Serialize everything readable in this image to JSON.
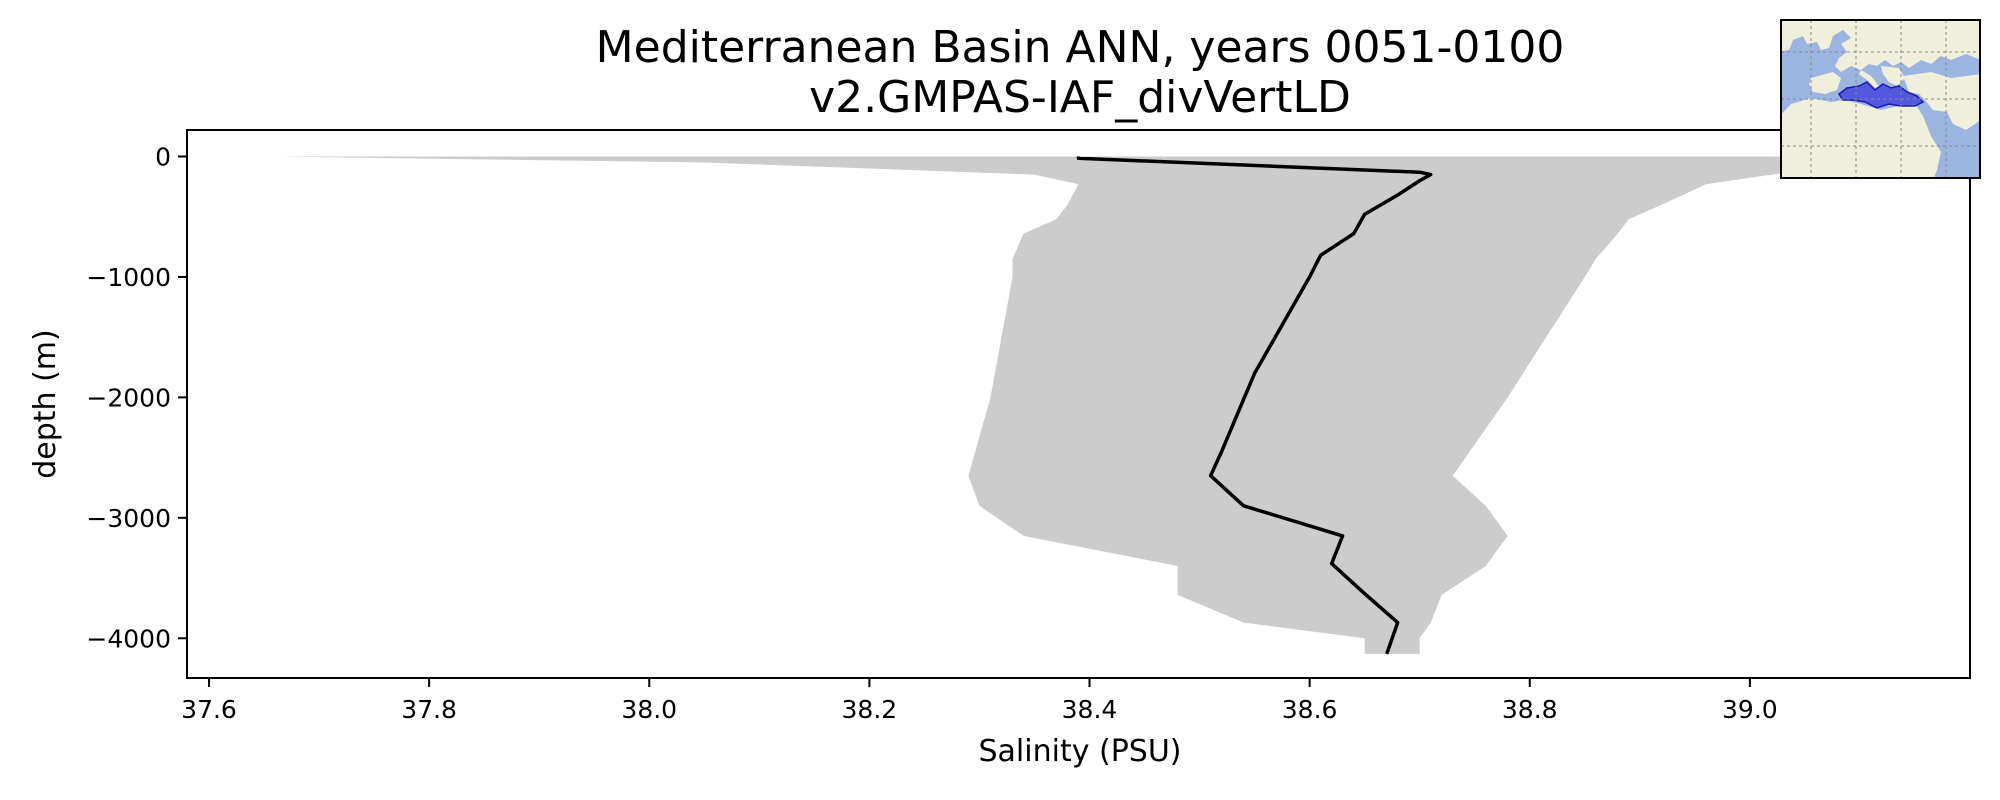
{
  "chart_data": {
    "type": "line",
    "title": "Mediterranean Basin ANN, years 0051-0100",
    "subtitle": "v2.GMPAS-IAF_divVertLD",
    "xlabel": "Salinity (PSU)",
    "ylabel": "depth (m)",
    "xlim": [
      37.58,
      39.2
    ],
    "ylim": [
      -4330,
      220
    ],
    "grid": false,
    "x_ticks": [
      {
        "value": 37.6,
        "label": "37.6"
      },
      {
        "value": 37.8,
        "label": "37.8"
      },
      {
        "value": 38.0,
        "label": "38.0"
      },
      {
        "value": 38.2,
        "label": "38.2"
      },
      {
        "value": 38.4,
        "label": "38.4"
      },
      {
        "value": 38.6,
        "label": "38.6"
      },
      {
        "value": 38.8,
        "label": "38.8"
      },
      {
        "value": 39.0,
        "label": "39.0"
      }
    ],
    "y_ticks": [
      {
        "value": 0,
        "label": "0"
      },
      {
        "value": -1000,
        "label": "−1000"
      },
      {
        "value": -2000,
        "label": "−2000"
      },
      {
        "value": -3000,
        "label": "−3000"
      },
      {
        "value": -4000,
        "label": "−4000"
      }
    ],
    "mean_profile": {
      "color": "#000000",
      "x": [
        38.39,
        38.39,
        38.7,
        38.71,
        38.7,
        38.68,
        38.65,
        38.64,
        38.61,
        38.6,
        38.55,
        38.52,
        38.51,
        38.54,
        38.63,
        38.62,
        38.65,
        38.68,
        38.67
      ],
      "y": [
        0,
        -15,
        -130,
        -150,
        -200,
        -320,
        -480,
        -640,
        -820,
        -1000,
        -1800,
        -2450,
        -2650,
        -2900,
        -3150,
        -3380,
        -3630,
        -3870,
        -4130
      ]
    },
    "spread_band": {
      "color": "#cccccc",
      "x_min": [
        37.66,
        38.05,
        38.35,
        38.39,
        38.38,
        38.37,
        38.34,
        38.33,
        38.33,
        38.31,
        38.29,
        38.3,
        38.34,
        38.48,
        38.48,
        38.54,
        38.65,
        38.65
      ],
      "x_max": [
        39.15,
        39.1,
        39.02,
        38.96,
        38.92,
        38.89,
        38.88,
        38.86,
        38.85,
        38.78,
        38.73,
        38.76,
        38.78,
        38.76,
        38.72,
        38.71,
        38.7,
        38.7
      ],
      "y": [
        0,
        -50,
        -150,
        -230,
        -400,
        -520,
        -640,
        -850,
        -1000,
        -2000,
        -2650,
        -2900,
        -3150,
        -3400,
        -3640,
        -3870,
        -4000,
        -4130
      ]
    },
    "inset_map": {
      "description_icon": "mediterranean-region-map",
      "ocean_color": "#9bb5e0",
      "land_color": "#efefdc",
      "region_color": "#3b3bdc"
    }
  }
}
